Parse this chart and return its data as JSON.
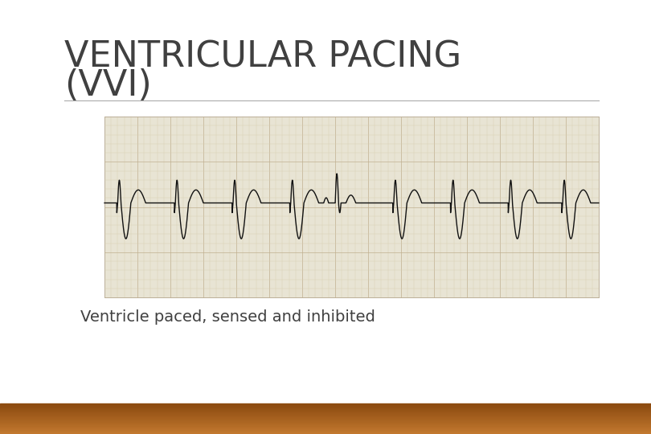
{
  "title_line1": "VENTRICULAR PACING",
  "title_line2": "(VVI)",
  "subtitle": "Ventricle paced, sensed and inhibited",
  "bg_color": "#ffffff",
  "title_color": "#404040",
  "subtitle_color": "#404040",
  "divider_color": "#aaaaaa",
  "bottom_bar_color1": "#c47a30",
  "bottom_bar_color2": "#8b4a10",
  "ecg_bg": "#e8e8d8",
  "ecg_grid_minor": "#c8b8a8",
  "ecg_grid_major": "#d4a888",
  "ecg_line_color": "#111111",
  "title_fontsize": 32,
  "subtitle_fontsize": 14
}
